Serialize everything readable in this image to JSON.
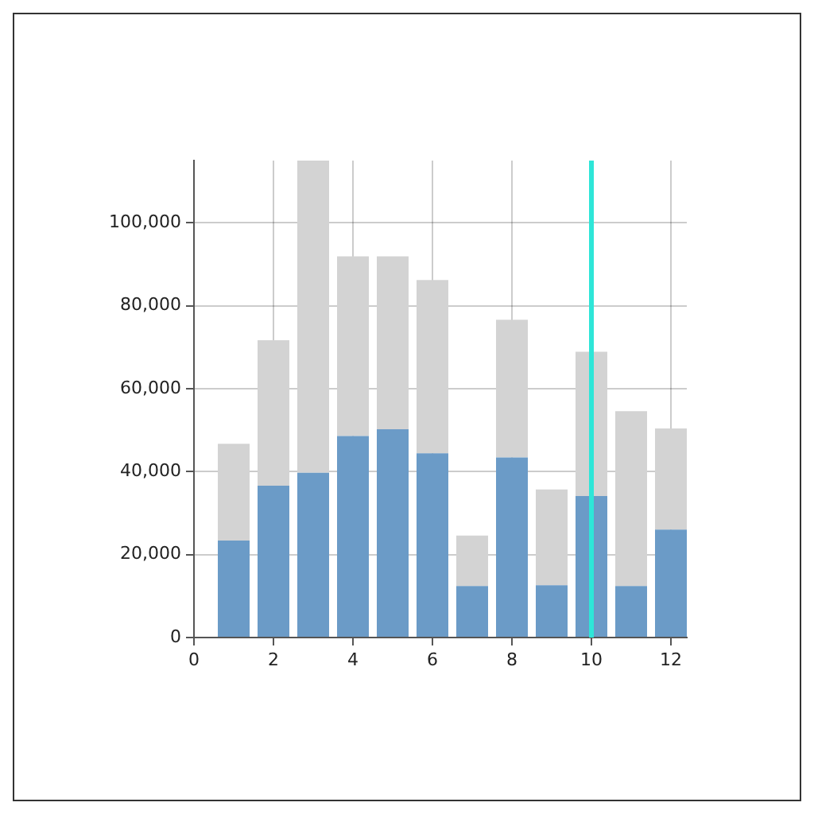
{
  "chart_data": {
    "type": "bar",
    "stacked": true,
    "x": [
      1,
      2,
      3,
      4,
      5,
      6,
      7,
      8,
      9,
      10,
      11,
      12
    ],
    "series": [
      {
        "color": "#6b9bc7",
        "values": [
          23400,
          36600,
          39700,
          48600,
          50200,
          44400,
          12400,
          43400,
          12600,
          34100,
          12400,
          26000
        ]
      },
      {
        "color": "#d3d3d3",
        "values": [
          23300,
          35100,
          75300,
          43300,
          41700,
          41800,
          12200,
          33200,
          23100,
          34800,
          42200,
          24400
        ]
      }
    ],
    "xlim": [
      0,
      12.4
    ],
    "xticks": [
      0,
      2,
      4,
      6,
      8,
      10,
      12
    ],
    "ylim": [
      0,
      115000
    ],
    "yticks": [
      0,
      {
        "value": 20000,
        "label": "20,000"
      },
      {
        "value": 40000,
        "label": "40,000"
      },
      {
        "value": 60000,
        "label": "60,000"
      },
      {
        "value": 80000,
        "label": "80,000"
      },
      {
        "value": 100000,
        "label": "100,000"
      }
    ],
    "ref_lines": [
      {
        "axis": "x",
        "value": 10,
        "color": "#2ee6d8"
      }
    ],
    "grid": true,
    "legend": false
  }
}
